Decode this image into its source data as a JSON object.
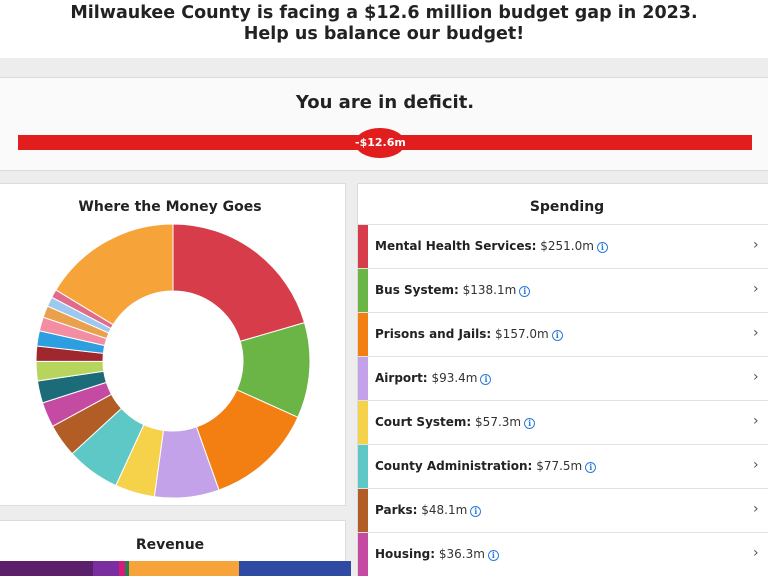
{
  "header": {
    "headline": "Milwaukee County is facing a $12.6 million budget gap in 2023. Help us balance our budget!"
  },
  "status": {
    "title": "You are in deficit.",
    "balance": "-$12.6m",
    "bar_color": "#e11d1d"
  },
  "money_chart": {
    "title": "Where the Money Goes"
  },
  "chart_data": {
    "type": "pie",
    "title": "Where the Money Goes",
    "categories": [
      "Mental Health Services",
      "Bus System",
      "Prisons and Jails",
      "Airport",
      "Court System",
      "County Administration",
      "Parks",
      "Housing",
      "",
      "",
      "",
      "",
      "",
      "",
      "",
      "",
      ""
    ],
    "values": [
      251.0,
      138.1,
      157.0,
      93.4,
      57.3,
      77.5,
      48.1,
      36.3,
      32,
      28,
      22,
      22,
      20,
      17,
      14,
      12,
      200
    ],
    "colors": [
      "#d63c4a",
      "#6bb446",
      "#f37f13",
      "#c4a2ea",
      "#f5d24a",
      "#5ec8c6",
      "#b25c26",
      "#c44aa2",
      "#1c6b78",
      "#b7d55c",
      "#a1272f",
      "#2d9ee0",
      "#f28da2",
      "#e9a14c",
      "#9ec8ee",
      "#e06b8a",
      "#f6a33a"
    ]
  },
  "spending": {
    "title": "Spending",
    "items": [
      {
        "name": "Mental Health Services:",
        "amount": "$251.0m",
        "color": "#d63c4a"
      },
      {
        "name": "Bus System:",
        "amount": "$138.1m",
        "color": "#6bb446"
      },
      {
        "name": "Prisons and Jails:",
        "amount": "$157.0m",
        "color": "#f37f13"
      },
      {
        "name": "Airport:",
        "amount": "$93.4m",
        "color": "#c4a2ea"
      },
      {
        "name": "Court System:",
        "amount": "$57.3m",
        "color": "#f5d24a"
      },
      {
        "name": "County Administration:",
        "amount": "$77.5m",
        "color": "#5ec8c6"
      },
      {
        "name": "Parks:",
        "amount": "$48.1m",
        "color": "#b25c26"
      },
      {
        "name": "Housing:",
        "amount": "$36.3m",
        "color": "#c44aa2"
      }
    ]
  },
  "revenue": {
    "title": "Revenue",
    "segments": [
      {
        "color": "#5b1f6b"
      },
      {
        "color": "#7a2ea0"
      },
      {
        "color": "#d81b7a"
      },
      {
        "color": "#2a7a54"
      },
      {
        "color": "#f6a33a"
      },
      {
        "color": "#2f4aa3"
      }
    ]
  }
}
